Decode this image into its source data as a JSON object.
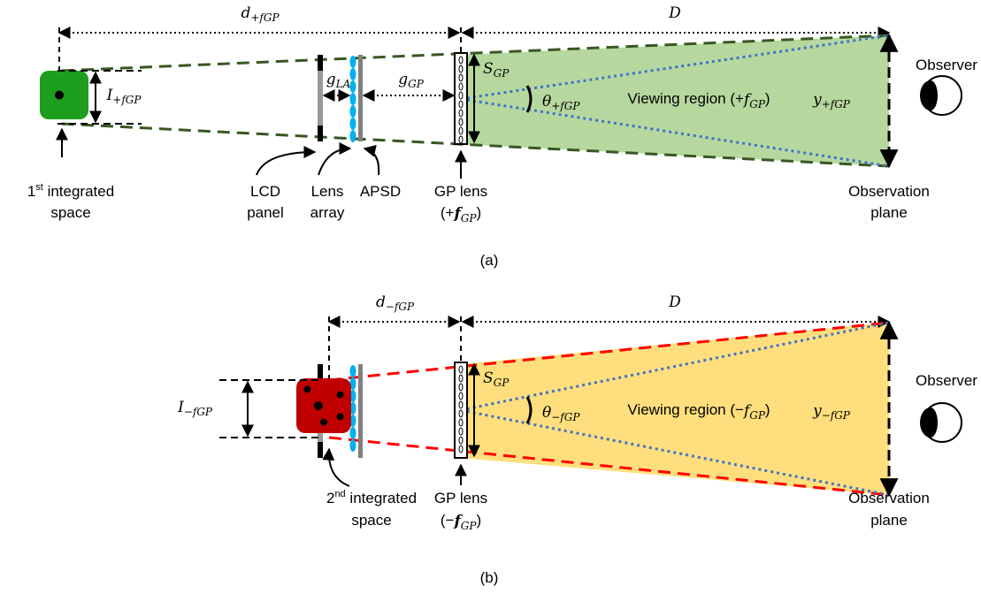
{
  "panels": [
    {
      "caption": "(a)",
      "distance_near": {
        "symbol": "d",
        "sub": "+fGP"
      },
      "distance_far": "D",
      "aperture": {
        "symbol": "S",
        "sub": "GP"
      },
      "gap_la": {
        "symbol": "g",
        "sub": "LA"
      },
      "gap_gp": {
        "symbol": "g",
        "sub": "GP"
      },
      "image_size": {
        "symbol": "I",
        "sub": "+fGP"
      },
      "angle": {
        "symbol": "θ",
        "sub": "+fGP"
      },
      "region": {
        "open": "Viewing region (+",
        "symbol": "f",
        "sub": "GP",
        "close": ")"
      },
      "width": {
        "symbol": "y",
        "sub": "+fGP"
      },
      "observer": "Observer",
      "plane": [
        "Observation",
        "plane"
      ],
      "space": {
        "num": "1",
        "sup": "st",
        "rest": " integrated",
        "line2": "space"
      },
      "lcd": [
        "LCD",
        "panel"
      ],
      "lens_array": [
        "Lens",
        "array"
      ],
      "apsd": "APSD",
      "gp_lens": {
        "line1": "GP lens",
        "open": "(+",
        "symbol": "f",
        "sub": "GP",
        "close": ")"
      }
    },
    {
      "caption": "(b)",
      "distance_near": {
        "symbol": "d",
        "sub": "−fGP"
      },
      "distance_far": "D",
      "aperture": {
        "symbol": "S",
        "sub": "GP"
      },
      "image_size": {
        "symbol": "I",
        "sub": "−fGP"
      },
      "angle": {
        "symbol": "θ",
        "sub": "−fGP"
      },
      "region": {
        "open": "Viewing region (−",
        "symbol": "f",
        "sub": "GP",
        "close": ")"
      },
      "width": {
        "symbol": "y",
        "sub": "−fGP"
      },
      "observer": "Observer",
      "plane": [
        "Observation",
        "plane"
      ],
      "space": {
        "num": "2",
        "sup": "nd",
        "rest": " integrated",
        "line2": "space"
      },
      "gp_lens": {
        "line1": "GP lens",
        "open": "(−",
        "symbol": "f",
        "sub": "GP",
        "close": ")"
      }
    }
  ]
}
